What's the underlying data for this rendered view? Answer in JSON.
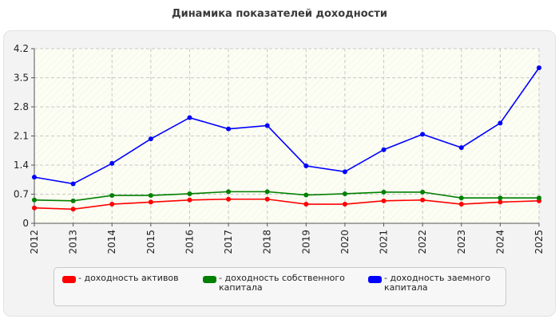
{
  "chart_data": {
    "type": "line",
    "title": "Динамика показателей доходности",
    "x": [
      "2012",
      "2013",
      "2014",
      "2015",
      "2016",
      "2017",
      "2018",
      "2019",
      "2020",
      "2021",
      "2022",
      "2023",
      "2024",
      "2025"
    ],
    "ylim": [
      0,
      4.2
    ],
    "yticks": [
      "0",
      "0.7",
      "1.4",
      "2.1",
      "2.8",
      "3.5",
      "4.2"
    ],
    "grid": true,
    "legend_position": "bottom",
    "series": [
      {
        "name": "- доходность активов",
        "color": "#ff0000",
        "values": [
          0.37,
          0.34,
          0.46,
          0.51,
          0.56,
          0.58,
          0.58,
          0.46,
          0.46,
          0.54,
          0.56,
          0.46,
          0.51,
          0.54
        ]
      },
      {
        "name": "- доходность собственного капитала",
        "color": "#008000",
        "values": [
          0.56,
          0.54,
          0.67,
          0.67,
          0.71,
          0.76,
          0.76,
          0.68,
          0.71,
          0.75,
          0.75,
          0.61,
          0.61,
          0.61
        ]
      },
      {
        "name": "- доходность заемного капитала",
        "color": "#0000ff",
        "values": [
          1.11,
          0.95,
          1.44,
          2.03,
          2.54,
          2.27,
          2.35,
          1.38,
          1.24,
          1.77,
          2.14,
          1.82,
          2.41,
          3.74
        ]
      }
    ]
  }
}
